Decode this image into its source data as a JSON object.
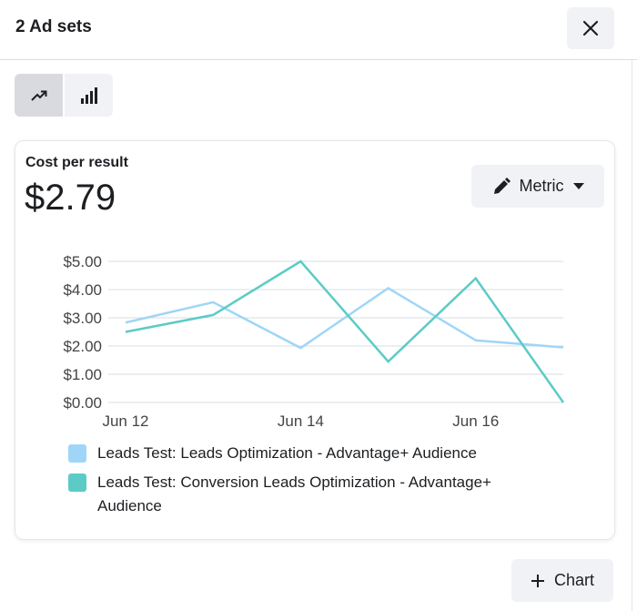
{
  "header": {
    "title": "2 Ad sets",
    "close_icon": "close-icon"
  },
  "view_toggle": [
    {
      "icon": "trending-line-icon",
      "active": true
    },
    {
      "icon": "bar-chart-icon",
      "active": false
    }
  ],
  "card": {
    "label": "Cost per result",
    "value": "$2.79",
    "metric_button": "Metric"
  },
  "chart_data": {
    "type": "line",
    "x": [
      "Jun 12",
      "Jun 13",
      "Jun 14",
      "Jun 15",
      "Jun 16",
      "Jun 17"
    ],
    "x_tick_labels": [
      "Jun 12",
      "Jun 14",
      "Jun 16"
    ],
    "y_tick_labels": [
      "$0.00",
      "$1.00",
      "$2.00",
      "$3.00",
      "$4.00",
      "$5.00"
    ],
    "ylim": [
      0,
      5
    ],
    "grid": true,
    "legend": "bottom",
    "series": [
      {
        "name": "Leads Test: Leads Optimization - Advantage+ Audience",
        "color": "#9fd6f7",
        "values": [
          2.83,
          3.55,
          1.93,
          4.05,
          2.2,
          1.95
        ]
      },
      {
        "name": "Leads Test: Conversion Leads Optimization - Advantage+ Audience",
        "color": "#5ccbc6",
        "values": [
          2.5,
          3.1,
          5.0,
          1.45,
          4.4,
          0.0
        ]
      }
    ]
  },
  "footer": {
    "add_chart": "Chart"
  }
}
